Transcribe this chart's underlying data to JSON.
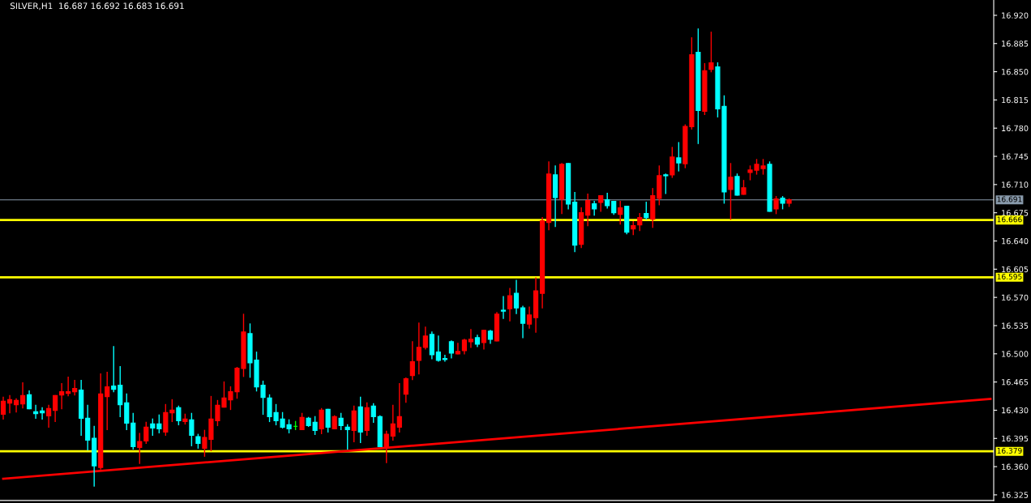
{
  "chart_data": {
    "type": "candlestick",
    "title": "SILVER,H1  16.687 16.692 16.683 16.691",
    "categories": [
      null,
      null,
      null,
      null,
      null,
      null,
      null,
      null,
      null,
      null,
      null,
      null,
      null,
      null,
      null,
      null,
      null,
      null,
      null,
      null,
      null,
      null,
      null,
      null,
      null,
      null,
      null,
      null,
      null,
      null,
      null,
      null,
      null,
      null,
      null,
      null,
      null,
      null,
      null,
      null,
      null,
      null,
      null,
      null,
      null,
      null,
      null,
      null,
      null,
      null,
      null,
      null,
      null,
      null,
      null,
      null,
      null,
      null,
      null,
      null,
      null,
      null,
      null,
      null,
      null,
      null,
      null,
      null,
      null,
      null,
      null,
      null,
      null,
      null,
      null,
      null,
      null,
      null,
      null,
      null,
      null,
      null,
      null,
      null,
      null,
      null,
      null,
      null,
      null,
      null,
      null,
      null,
      null,
      null,
      null,
      null,
      null,
      null,
      null,
      null,
      null,
      null,
      null,
      null,
      null,
      null,
      null,
      null,
      null,
      null,
      null,
      null,
      null,
      null,
      null,
      null,
      null,
      null,
      null,
      null,
      null,
      null,
      null,
      null,
      null,
      null,
      null,
      null,
      null,
      null,
      null,
      null,
      null,
      null,
      null,
      null,
      null,
      null,
      null,
      null,
      null,
      null,
      null,
      null,
      null,
      null,
      null,
      null,
      null,
      null,
      null,
      null,
      null
    ],
    "ohlc": [
      [
        16.425,
        16.446,
        16.419,
        16.441
      ],
      [
        16.439,
        16.448,
        16.427,
        16.443
      ],
      [
        16.437,
        16.444,
        16.428,
        16.442
      ],
      [
        16.438,
        16.464,
        16.433,
        16.448
      ],
      [
        16.449,
        16.454,
        16.432,
        16.432
      ],
      [
        16.428,
        16.436,
        16.42,
        16.426
      ],
      [
        16.429,
        16.433,
        16.419,
        16.427
      ],
      [
        16.423,
        16.436,
        16.409,
        16.432
      ],
      [
        16.43,
        16.448,
        16.416,
        16.448
      ],
      [
        16.449,
        16.463,
        16.432,
        16.453
      ],
      [
        16.451,
        16.471,
        16.448,
        16.453
      ],
      [
        16.453,
        16.467,
        16.449,
        16.457
      ],
      [
        16.455,
        16.467,
        16.399,
        16.42
      ],
      [
        16.42,
        16.436,
        16.381,
        16.393
      ],
      [
        16.395,
        16.41,
        16.336,
        16.361
      ],
      [
        16.359,
        16.475,
        16.357,
        16.45
      ],
      [
        16.447,
        16.477,
        16.406,
        16.459
      ],
      [
        16.46,
        16.509,
        16.453,
        16.456
      ],
      [
        16.461,
        16.484,
        16.422,
        16.437
      ],
      [
        16.439,
        16.45,
        16.406,
        16.414
      ],
      [
        16.414,
        16.426,
        16.382,
        16.385
      ],
      [
        16.384,
        16.401,
        16.364,
        16.391
      ],
      [
        16.392,
        16.415,
        16.389,
        16.409
      ],
      [
        16.413,
        16.419,
        16.399,
        16.408
      ],
      [
        16.413,
        16.424,
        16.402,
        16.407
      ],
      [
        16.403,
        16.437,
        16.399,
        16.427
      ],
      [
        16.427,
        16.443,
        16.416,
        16.43
      ],
      [
        16.433,
        16.435,
        16.412,
        16.417
      ],
      [
        16.416,
        16.425,
        16.413,
        16.419
      ],
      [
        16.418,
        16.426,
        16.386,
        16.399
      ],
      [
        16.397,
        16.4,
        16.383,
        16.389
      ],
      [
        16.383,
        16.405,
        16.373,
        16.396
      ],
      [
        16.394,
        16.447,
        16.38,
        16.419
      ],
      [
        16.417,
        16.442,
        16.411,
        16.436
      ],
      [
        16.434,
        16.465,
        16.434,
        16.445
      ],
      [
        16.443,
        16.459,
        16.431,
        16.453
      ],
      [
        16.453,
        16.483,
        16.445,
        16.482
      ],
      [
        16.482,
        16.549,
        16.472,
        16.527
      ],
      [
        16.525,
        16.537,
        16.471,
        16.489
      ],
      [
        16.492,
        16.502,
        16.454,
        16.459
      ],
      [
        16.461,
        16.466,
        16.425,
        16.446
      ],
      [
        16.445,
        16.449,
        16.416,
        16.422
      ],
      [
        16.427,
        16.437,
        16.412,
        16.417
      ],
      [
        16.419,
        16.427,
        16.408,
        16.409
      ],
      [
        16.412,
        16.418,
        16.402,
        16.407
      ],
      [
        16.41,
        16.416,
        16.406,
        16.41
      ],
      [
        16.406,
        16.426,
        16.406,
        16.421
      ],
      [
        16.42,
        16.421,
        16.41,
        16.411
      ],
      [
        16.415,
        16.422,
        16.4,
        16.405
      ],
      [
        16.407,
        16.432,
        16.401,
        16.43
      ],
      [
        16.431,
        16.431,
        16.403,
        16.409
      ],
      [
        16.407,
        16.423,
        16.407,
        16.422
      ],
      [
        16.42,
        16.426,
        16.406,
        16.411
      ],
      [
        16.409,
        16.412,
        16.382,
        16.406
      ],
      [
        16.405,
        16.435,
        16.391,
        16.429
      ],
      [
        16.434,
        16.446,
        16.39,
        16.403
      ],
      [
        16.405,
        16.439,
        16.399,
        16.433
      ],
      [
        16.435,
        16.438,
        16.415,
        16.422
      ],
      [
        16.422,
        16.423,
        16.385,
        16.385
      ],
      [
        16.385,
        16.404,
        16.365,
        16.4
      ],
      [
        16.398,
        16.436,
        16.393,
        16.413
      ],
      [
        16.409,
        16.463,
        16.403,
        16.422
      ],
      [
        16.45,
        16.47,
        16.44,
        16.469
      ],
      [
        16.473,
        16.515,
        16.468,
        16.49
      ],
      [
        16.492,
        16.538,
        16.475,
        16.508
      ],
      [
        16.508,
        16.533,
        16.506,
        16.522
      ],
      [
        16.524,
        16.527,
        16.494,
        16.499
      ],
      [
        16.502,
        16.522,
        16.491,
        16.492
      ],
      [
        16.494,
        16.498,
        16.491,
        16.493
      ],
      [
        16.515,
        16.516,
        16.495,
        16.501
      ],
      [
        16.5,
        16.513,
        16.5,
        16.503
      ],
      [
        16.504,
        16.518,
        16.5,
        16.517
      ],
      [
        16.515,
        16.53,
        16.508,
        16.518
      ],
      [
        16.52,
        16.523,
        16.509,
        16.512
      ],
      [
        16.514,
        16.529,
        16.506,
        16.529
      ],
      [
        16.528,
        16.529,
        16.513,
        16.518
      ],
      [
        16.516,
        16.551,
        16.516,
        16.549
      ],
      [
        16.554,
        16.571,
        16.544,
        16.553
      ],
      [
        16.556,
        16.581,
        16.541,
        16.572
      ],
      [
        16.575,
        16.591,
        16.55,
        16.557
      ],
      [
        16.557,
        16.559,
        16.52,
        16.538
      ],
      [
        16.537,
        16.558,
        16.532,
        16.548
      ],
      [
        16.545,
        16.594,
        16.527,
        16.578
      ],
      [
        16.575,
        16.669,
        16.557,
        16.665
      ],
      [
        16.663,
        16.738,
        16.654,
        16.723
      ],
      [
        16.722,
        16.733,
        16.658,
        16.694
      ],
      [
        16.692,
        16.736,
        16.674,
        16.735
      ],
      [
        16.736,
        16.736,
        16.68,
        16.686
      ],
      [
        16.688,
        16.7,
        16.627,
        16.635
      ],
      [
        16.636,
        16.681,
        16.632,
        16.675
      ],
      [
        16.672,
        16.698,
        16.659,
        16.69
      ],
      [
        16.686,
        16.689,
        16.672,
        16.68
      ],
      [
        16.688,
        16.696,
        16.677,
        16.696
      ],
      [
        16.691,
        16.699,
        16.681,
        16.684
      ],
      [
        16.689,
        16.689,
        16.673,
        16.675
      ],
      [
        16.673,
        16.689,
        16.661,
        16.681
      ],
      [
        16.683,
        16.683,
        16.649,
        16.651
      ],
      [
        16.655,
        16.664,
        16.648,
        16.659
      ],
      [
        16.66,
        16.674,
        16.653,
        16.669
      ],
      [
        16.674,
        16.688,
        16.667,
        16.669
      ],
      [
        16.667,
        16.705,
        16.657,
        16.696
      ],
      [
        16.693,
        16.733,
        16.685,
        16.721
      ],
      [
        16.722,
        16.723,
        16.699,
        16.721
      ],
      [
        16.722,
        16.756,
        16.719,
        16.744
      ],
      [
        16.743,
        16.762,
        16.727,
        16.737
      ],
      [
        16.736,
        16.784,
        16.731,
        16.782
      ],
      [
        16.782,
        16.892,
        16.779,
        16.871
      ],
      [
        16.874,
        16.903,
        16.761,
        16.802
      ],
      [
        16.801,
        16.86,
        16.797,
        16.851
      ],
      [
        16.853,
        16.899,
        16.85,
        16.861
      ],
      [
        16.856,
        16.861,
        16.794,
        16.804
      ],
      [
        16.807,
        16.82,
        16.687,
        16.701
      ],
      [
        16.704,
        16.736,
        16.667,
        16.719
      ],
      [
        16.72,
        16.723,
        16.697,
        16.697
      ],
      [
        16.698,
        16.715,
        16.698,
        16.706
      ],
      [
        16.725,
        16.733,
        16.716,
        16.728
      ],
      [
        16.728,
        16.741,
        16.723,
        16.735
      ],
      [
        16.73,
        16.741,
        16.723,
        16.733
      ],
      [
        16.735,
        16.738,
        16.677,
        16.677
      ],
      [
        16.68,
        16.695,
        16.674,
        16.692
      ],
      [
        16.693,
        16.695,
        16.68,
        16.687
      ],
      [
        16.687,
        16.692,
        16.683,
        16.691
      ],
      null,
      null,
      null,
      null,
      null,
      null,
      null,
      null,
      null,
      null,
      null,
      null,
      null,
      null,
      null,
      null,
      null,
      null,
      null,
      null,
      null,
      null,
      null,
      null,
      null,
      null,
      null,
      null,
      null,
      null,
      null
    ],
    "colors": [
      "#ff0000",
      "#ff0000",
      "#ff0000",
      "#ff0000",
      "#00ffff",
      "#00ffff",
      "#00ffff",
      "#ff0000",
      "#ff0000",
      "#ff0000",
      "#ff0000",
      "#ff0000",
      "#00ffff",
      "#00ffff",
      "#00ffff",
      "#ff0000",
      "#ff0000",
      "#00ffff",
      "#00ffff",
      "#00ffff",
      "#00ffff",
      "#ff0000",
      "#ff0000",
      "#00ffff",
      "#00ffff",
      "#ff0000",
      "#ff0000",
      "#00ffff",
      "#ff0000",
      "#00ffff",
      "#00ffff",
      "#ff0000",
      "#ff0000",
      "#ff0000",
      "#ff0000",
      "#ff0000",
      "#ff0000",
      "#ff0000",
      "#00ffff",
      "#00ffff",
      "#00ffff",
      "#00ffff",
      "#00ffff",
      "#00ffff",
      "#00ffff",
      "#00ff00",
      "#ff0000",
      "#00ffff",
      "#00ffff",
      "#ff0000",
      "#00ffff",
      "#ff0000",
      "#00ffff",
      "#00ffff",
      "#ff0000",
      "#00ffff",
      "#ff0000",
      "#00ffff",
      "#00ffff",
      "#ff0000",
      "#ff0000",
      "#ff0000",
      "#ff0000",
      "#ff0000",
      "#ff0000",
      "#ff0000",
      "#00ffff",
      "#00ffff",
      "#00ffff",
      "#00ffff",
      "#ff0000",
      "#ff0000",
      "#ff0000",
      "#00ffff",
      "#ff0000",
      "#00ffff",
      "#ff0000",
      "#00ffff",
      "#ff0000",
      "#00ffff",
      "#00ffff",
      "#ff0000",
      "#ff0000",
      "#ff0000",
      "#ff0000",
      "#00ffff",
      "#ff0000",
      "#00ffff",
      "#00ffff",
      "#ff0000",
      "#ff0000",
      "#00ffff",
      "#ff0000",
      "#00ffff",
      "#00ffff",
      "#ff0000",
      "#00ffff",
      "#ff0000",
      "#ff0000",
      "#00ffff",
      "#ff0000",
      "#ff0000",
      "#00ffff",
      "#ff0000",
      "#00ffff",
      "#ff0000",
      "#ff0000",
      "#00ffff",
      "#ff0000",
      "#ff0000",
      "#00ffff",
      "#00ffff",
      "#ff0000",
      "#00ffff",
      "#ff0000",
      "#ff0000",
      "#ff0000",
      "#ff0000",
      "#00ffff",
      "#ff0000",
      "#00ffff",
      "#ff0000",
      null,
      null,
      null,
      null,
      null,
      null,
      null,
      null,
      null,
      null,
      null,
      null,
      null,
      null,
      null,
      null,
      null,
      null,
      null,
      null,
      null,
      null,
      null,
      null,
      null,
      null,
      null,
      null,
      null,
      null,
      null
    ],
    "series": [
      {
        "type": "line",
        "color": "#ff0000",
        "values": [
          16.345,
          null,
          null,
          null,
          null,
          null,
          null,
          null,
          null,
          null,
          null,
          null,
          null,
          null,
          null,
          null,
          null,
          null,
          null,
          null,
          null,
          null,
          null,
          null,
          null,
          null,
          null,
          null,
          null,
          null,
          null,
          null,
          null,
          null,
          null,
          null,
          null,
          null,
          null,
          null,
          null,
          null,
          null,
          null,
          null,
          null,
          null,
          null,
          null,
          null,
          null,
          null,
          null,
          null,
          null,
          null,
          null,
          null,
          null,
          null,
          null,
          null,
          null,
          null,
          null,
          null,
          null,
          null,
          null,
          null,
          null,
          null,
          null,
          null,
          null,
          null,
          null,
          null,
          null,
          null,
          null,
          null,
          null,
          null,
          null,
          null,
          null,
          null,
          null,
          null,
          null,
          null,
          null,
          null,
          null,
          null,
          null,
          null,
          null,
          null,
          null,
          null,
          null,
          null,
          null,
          null,
          null,
          null,
          null,
          null,
          null,
          null,
          null,
          null,
          null,
          null,
          null,
          null,
          null,
          null,
          null,
          null,
          null,
          null,
          null,
          null,
          null,
          null,
          null,
          null,
          null,
          null,
          null,
          null,
          null,
          null,
          null,
          null,
          null,
          null,
          null,
          null,
          null,
          null,
          null,
          null,
          null,
          null,
          null,
          null,
          null,
          null,
          16.444
        ]
      }
    ],
    "ref_lines": [
      {
        "axis": "y",
        "value": 16.691,
        "label": "16.691",
        "color": "#8899aa"
      },
      {
        "axis": "y",
        "value": 16.666,
        "label": "16.666",
        "color": "#ffff00"
      },
      {
        "axis": "y",
        "value": 16.595,
        "label": "16.595",
        "color": "#ffff00"
      },
      {
        "axis": "y",
        "value": 16.379,
        "label": "16.379",
        "color": "#ffff00"
      }
    ],
    "ylim": [
      16.318,
      16.939
    ],
    "yticks": [
      {
        "value": 16.92,
        "label": "16.920"
      },
      {
        "value": 16.885,
        "label": "16.885"
      },
      {
        "value": 16.85,
        "label": "16.850"
      },
      {
        "value": 16.815,
        "label": "16.815"
      },
      {
        "value": 16.78,
        "label": "16.780"
      },
      {
        "value": 16.745,
        "label": "16.745"
      },
      {
        "value": 16.71,
        "label": "16.710"
      },
      {
        "value": 16.675,
        "label": "16.675"
      },
      {
        "value": 16.64,
        "label": "16.640"
      },
      {
        "value": 16.605,
        "label": "16.605"
      },
      {
        "value": 16.57,
        "label": "16.570"
      },
      {
        "value": 16.535,
        "label": "16.535"
      },
      {
        "value": 16.5,
        "label": "16.500"
      },
      {
        "value": 16.465,
        "label": "16.465"
      },
      {
        "value": 16.43,
        "label": "16.430"
      },
      {
        "value": 16.395,
        "label": "16.395"
      },
      {
        "value": 16.36,
        "label": "16.360"
      },
      {
        "value": 16.325,
        "label": "16.325"
      }
    ],
    "tick_labels": "y",
    "grid": false
  }
}
